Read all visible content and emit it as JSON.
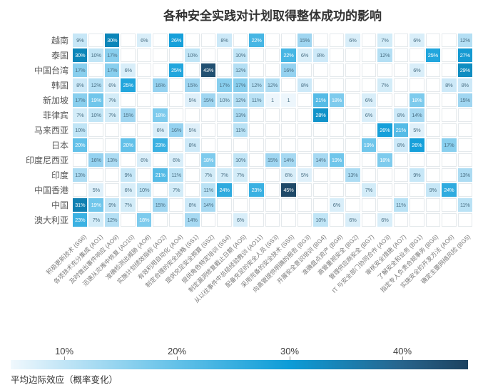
{
  "chart_data": {
    "type": "heatmap",
    "title": "各种安全实践对计划取得整体成功的影响",
    "value_unit": "percent (平均边际效应)",
    "columns": [
      "积极更新技术 (SS6)",
      "各项技术充分集成 (AO1)",
      "及时做出事件响应 (AO9)",
      "迅速从灾难中恢复 (AO10)",
      "准确检测出威胁 (AO8)",
      "实施计划绩效指标 (AO2)",
      "有效利用自动化 (AO4)",
      "制定合理的安全战略 (SS1)",
      "提供充足安全预算 (SS2)",
      "提供角色特定培训 (SS4)",
      "制定漏洞修复截止日期 (AO5)",
      "从以往事件中总结经验教训 (AO11)",
      "配备充足的安全人员 (SS3)",
      "采用完备的安全技术 (SS5)",
      "向高管提供明确的报告 (BG3)",
      "开展安全意识培训 (BG4)",
      "准确盘点资产 (BG8)",
      "高管重视安全 (BG2)",
      "管理供应商安全 (BG7)",
      "IT 与安全部门协同合作 (AO3)",
      "审核安全措施 (AO7)",
      "了解安全和业务 (BG1)",
      "指定专人负责合规事务 (BG6)",
      "实施安全的开发方法 (AO6)",
      "确定主要网络风险 (BG5)"
    ],
    "rows": [
      {
        "name": "越南",
        "values": [
          "9%",
          "",
          "30%",
          "",
          "6%",
          "",
          "26%",
          "",
          "",
          "8%",
          "",
          "22%",
          "",
          "",
          "15%",
          "",
          "",
          "6%",
          "",
          "7%",
          "",
          "6%",
          "",
          "",
          "12%"
        ]
      },
      {
        "name": "泰国",
        "values": [
          "30%",
          "10%",
          "17%",
          "",
          "",
          "",
          "",
          "10%",
          "",
          "",
          "10%",
          "",
          "",
          "22%",
          "6%",
          "8%",
          "",
          "",
          "",
          "12%",
          "",
          "",
          "25%",
          "",
          "27%"
        ]
      },
      {
        "name": "中国台湾",
        "values": [
          "17%",
          "",
          "17%",
          "6%",
          "",
          "",
          "25%",
          "",
          "43%",
          "",
          "12%",
          "",
          "",
          "16%",
          "",
          "",
          "",
          "",
          "",
          "",
          "",
          "6%",
          "",
          "",
          "29%"
        ]
      },
      {
        "name": "韩国",
        "values": [
          "8%",
          "12%",
          "6%",
          "25%",
          "",
          "16%",
          "",
          "15%",
          "",
          "17%",
          "17%",
          "12%",
          "12%",
          "",
          "8%",
          "",
          "",
          "",
          "",
          "7%",
          "",
          "",
          "",
          "8%",
          "8%"
        ]
      },
      {
        "name": "新加坡",
        "values": [
          "17%",
          "19%",
          "7%",
          "",
          "",
          "",
          "",
          "5%",
          "15%",
          "10%",
          "12%",
          "11%",
          "1",
          "1",
          "",
          "21%",
          "18%",
          "",
          "6%",
          "",
          "",
          "18%",
          "",
          "",
          "15%"
        ]
      },
      {
        "name": "菲律宾",
        "values": [
          "7%",
          "10%",
          "7%",
          "15%",
          "",
          "18%",
          "",
          "",
          "",
          "",
          "13%",
          "",
          "",
          "",
          "",
          "28%",
          "",
          "",
          "6%",
          "",
          "8%",
          "14%",
          "",
          "",
          ""
        ]
      },
      {
        "name": "马来西亚",
        "values": [
          "10%",
          "",
          "",
          "",
          "",
          "6%",
          "16%",
          "5%",
          "",
          "",
          "11%",
          "",
          "",
          "",
          "",
          "",
          "",
          "",
          "",
          "26%",
          "21%",
          "5%",
          "",
          "",
          ""
        ]
      },
      {
        "name": "日本",
        "values": [
          "20%",
          "",
          "",
          "20%",
          "",
          "23%",
          "",
          "8%",
          "",
          "",
          "",
          "",
          "",
          "",
          "",
          "",
          "",
          "",
          "19%",
          "",
          "8%",
          "26%",
          "",
          "17%",
          ""
        ]
      },
      {
        "name": "印度尼西亚",
        "values": [
          "",
          "16%",
          "13%",
          "",
          "6%",
          "",
          "6%",
          "",
          "18%",
          "",
          "10%",
          "",
          "15%",
          "14%",
          "",
          "14%",
          "19%",
          "",
          "",
          "18%",
          "",
          "",
          "",
          "",
          ""
        ]
      },
      {
        "name": "印度",
        "values": [
          "13%",
          "",
          "",
          "9%",
          "",
          "21%",
          "11%",
          "",
          "7%",
          "7%",
          "7%",
          "",
          "",
          "6%",
          "5%",
          "",
          "",
          "13%",
          "",
          "",
          "",
          "9%",
          "",
          "",
          "13%"
        ]
      },
      {
        "name": "中国香港",
        "values": [
          "",
          "5%",
          "",
          "6%",
          "10%",
          "",
          "7%",
          "",
          "11%",
          "24%",
          "",
          "23%",
          "",
          "45%",
          "",
          "",
          "",
          "",
          "7%",
          "",
          "",
          "",
          "9%",
          "24%",
          ""
        ]
      },
      {
        "name": "中国",
        "values": [
          "31%",
          "19%",
          "9%",
          "7%",
          "",
          "15%",
          "",
          "8%",
          "14%",
          "",
          "",
          "",
          "",
          "",
          "",
          "",
          "6%",
          "",
          "",
          "",
          "11%",
          "",
          "",
          "",
          "11%"
        ]
      },
      {
        "name": "澳大利亚",
        "values": [
          "23%",
          "7%",
          "12%",
          "",
          "18%",
          "",
          "",
          "14%",
          "",
          "",
          "6%",
          "",
          "",
          "",
          "",
          "10%",
          "",
          "6%",
          "",
          "6%",
          "",
          "",
          "",
          "",
          ""
        ]
      }
    ],
    "legend": {
      "ticks": [
        "10%",
        "20%",
        "30%",
        "40%"
      ],
      "caption": "平均边际效应（概率变化）",
      "gradient_left_color": "#f0f8fd",
      "gradient_right_color": "#1c4260"
    },
    "colors": {
      "low_cell": "#e3f2fb",
      "mid_cell": "#16a0da",
      "high_cell": "#1c425f",
      "cell_text_dark": "#4a7085",
      "cell_text_light": "#ffffff"
    }
  }
}
